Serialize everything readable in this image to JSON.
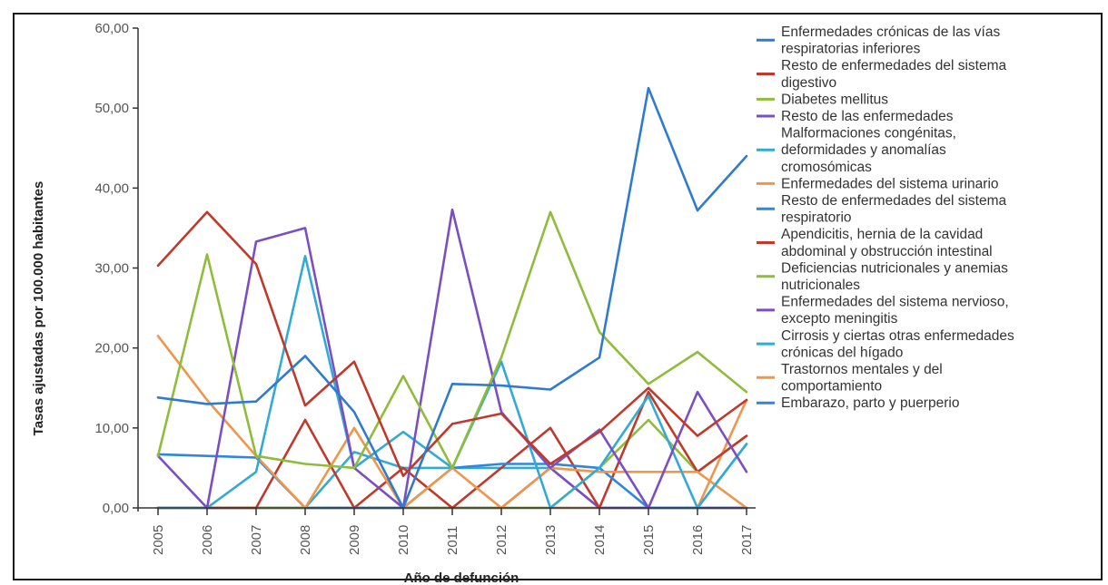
{
  "chart_data": {
    "type": "line",
    "title": "",
    "xlabel": "Año de defunción",
    "ylabel": "Tasas ajustadas por 100.000 habitantes",
    "x": [
      "2005",
      "2006",
      "2007",
      "2008",
      "2009",
      "2010",
      "2011",
      "2012",
      "2013",
      "2014",
      "2015",
      "2016",
      "2017"
    ],
    "ylim": [
      0,
      60
    ],
    "yticks": [
      "0,00",
      "10,00",
      "20,00",
      "30,00",
      "40,00",
      "50,00",
      "60,00"
    ],
    "grid": false,
    "legend_position": "right",
    "series": [
      {
        "name": [
          "Enfermedades crónicas de las vías",
          "respiratorias inferiores"
        ],
        "color": "#2e7bcf",
        "values": [
          13.8,
          13.0,
          13.3,
          19.0,
          12.0,
          0.0,
          15.5,
          15.3,
          14.8,
          18.8,
          52.5,
          37.2,
          44.0
        ]
      },
      {
        "name": [
          "Resto de enfermedades del sistema",
          "digestivo"
        ],
        "color": "#c0392b",
        "values": [
          30.3,
          37.0,
          30.5,
          12.8,
          18.3,
          4.0,
          10.5,
          11.8,
          5.5,
          9.5,
          15.0,
          9.0,
          13.5
        ]
      },
      {
        "name": [
          "Diabetes mellitus"
        ],
        "color": "#8fbc3a",
        "values": [
          6.5,
          31.7,
          6.5,
          5.5,
          5.0,
          16.5,
          5.0,
          18.8,
          37.0,
          22.0,
          15.5,
          19.5,
          14.5
        ]
      },
      {
        "name": [
          "Resto de las enfermedades"
        ],
        "color": "#7b4fc2",
        "values": [
          6.5,
          0.0,
          33.3,
          35.0,
          5.0,
          0.0,
          37.3,
          12.0,
          5.0,
          9.8,
          0.0,
          14.5,
          4.5
        ]
      },
      {
        "name": [
          "Malformaciones congénitas,",
          "deformidades y anomalías",
          "cromosómicas"
        ],
        "color": "#33aad6",
        "values": [
          0.0,
          0.0,
          4.5,
          31.5,
          5.0,
          9.5,
          5.0,
          18.3,
          0.0,
          5.0,
          14.0,
          0.0,
          8.0
        ]
      },
      {
        "name": [
          "Enfermedades del sistema urinario"
        ],
        "color": "#f0954a",
        "values": [
          21.5,
          13.5,
          6.5,
          0.0,
          10.0,
          0.0,
          5.0,
          0.0,
          5.0,
          4.5,
          4.5,
          4.5,
          0.0
        ]
      },
      {
        "name": [
          "Resto de enfermedades del sistema",
          "respiratorio"
        ],
        "color": "#2e86de",
        "values": [
          6.7,
          6.5,
          6.3,
          0.0,
          0.0,
          0.0,
          5.0,
          5.5,
          5.5,
          5.0,
          0.0,
          0.0,
          8.0
        ]
      },
      {
        "name": [
          "Apendicitis, hernia de la cavidad",
          "abdominal y obstrucción intestinal"
        ],
        "color": "#c0392b",
        "values": [
          0.0,
          0.0,
          0.0,
          11.0,
          0.0,
          5.0,
          0.0,
          5.0,
          10.0,
          0.0,
          14.5,
          4.5,
          9.0
        ]
      },
      {
        "name": [
          "Deficiencias nutricionales y anemias",
          "nutricionales"
        ],
        "color": "#8fbc3a",
        "values": [
          0.0,
          0.0,
          0.0,
          0.0,
          0.0,
          0.0,
          0.0,
          0.0,
          0.0,
          5.0,
          11.0,
          4.5,
          9.0
        ]
      },
      {
        "name": [
          "Enfermedades del sistema nervioso,",
          "excepto meningitis"
        ],
        "color": "#7b4fc2",
        "values": [
          0.0,
          0.0,
          0.0,
          0.0,
          0.0,
          0.0,
          0.0,
          0.0,
          5.0,
          0.0,
          0.0,
          0.0,
          0.0
        ]
      },
      {
        "name": [
          "Cirrosis y ciertas otras enfermedades",
          "crónicas del hígado"
        ],
        "color": "#33aad6",
        "values": [
          0.0,
          0.0,
          0.0,
          0.0,
          7.0,
          5.0,
          5.0,
          5.0,
          5.0,
          0.0,
          0.0,
          0.0,
          0.0
        ]
      },
      {
        "name": [
          "Trastornos mentales y del",
          "comportamiento"
        ],
        "color": "#f0954a",
        "values": [
          0.0,
          0.0,
          0.0,
          0.0,
          0.0,
          0.0,
          0.0,
          0.0,
          0.0,
          0.0,
          0.0,
          0.0,
          13.5
        ]
      },
      {
        "name": [
          "Embarazo, parto y puerperio"
        ],
        "color": "#2e86de",
        "values": [
          0.0,
          0.0,
          0.0,
          0.0,
          0.0,
          0.0,
          0.0,
          0.0,
          0.0,
          0.0,
          0.0,
          0.0,
          0.0
        ]
      }
    ]
  }
}
